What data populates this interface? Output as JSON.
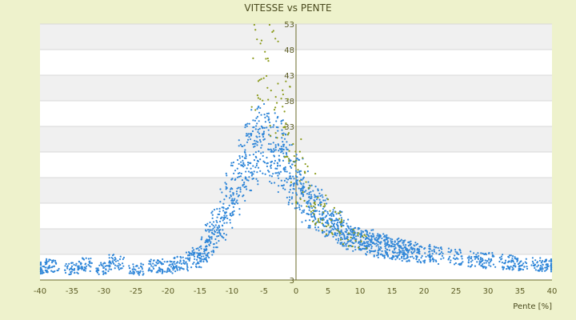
{
  "chart_data": {
    "type": "scatter",
    "title": "VITESSE vs PENTE",
    "xlabel": "Pente [%]",
    "ylabel": "",
    "xlim": [
      -40,
      40
    ],
    "ylim": [
      3,
      53
    ],
    "x_ticks": [
      "-40",
      "-35",
      "-30",
      "-25",
      "-20",
      "-15",
      "-10",
      "-5",
      "0",
      "5",
      "10",
      "15",
      "20",
      "25",
      "30",
      "35",
      "40"
    ],
    "y_ticks": [
      "3",
      "",
      "",
      "",
      "",
      "",
      "",
      "33",
      "38",
      "43",
      "48",
      "53"
    ],
    "grid": true,
    "legend": "none",
    "colors": {
      "background": "#eef2cc",
      "plot_area": "#ffffff",
      "band": "#f0f0f0",
      "series_main": "#2f86d8",
      "series_secondary": "#8a9a1a",
      "axis": "#6b6b2a"
    },
    "series": [
      {
        "description_key": "main",
        "color": "#2f86d8",
        "points": [
          [
            -40,
            5.3
          ],
          [
            -38,
            5.8
          ],
          [
            -35,
            5.2
          ],
          [
            -33,
            6.0
          ],
          [
            -30,
            5.3
          ],
          [
            -28,
            6.5
          ],
          [
            -25,
            5.1
          ],
          [
            -22,
            5.8
          ],
          [
            -20,
            5.5
          ],
          [
            -18,
            6.2
          ],
          [
            -16,
            7.0
          ],
          [
            -15,
            8.0
          ],
          [
            -14,
            9.5
          ],
          [
            -13,
            12
          ],
          [
            -12,
            14
          ],
          [
            -11,
            17
          ],
          [
            -10,
            20
          ],
          [
            -9,
            23
          ],
          [
            -8,
            26
          ],
          [
            -7,
            28
          ],
          [
            -6,
            30
          ],
          [
            -5,
            31
          ],
          [
            -4,
            30
          ],
          [
            -3,
            28
          ],
          [
            -2,
            26
          ],
          [
            -1,
            24
          ],
          [
            0,
            22
          ],
          [
            1,
            20
          ],
          [
            2,
            18
          ],
          [
            3,
            17
          ],
          [
            4,
            16
          ],
          [
            5,
            14.5
          ],
          [
            6,
            13.5
          ],
          [
            7,
            12.5
          ],
          [
            8,
            12
          ],
          [
            9,
            11.5
          ],
          [
            10,
            11
          ],
          [
            11,
            10.5
          ],
          [
            12,
            10
          ],
          [
            13,
            9.8
          ],
          [
            14,
            9.5
          ],
          [
            15,
            9.2
          ],
          [
            16,
            9
          ],
          [
            17,
            8.7
          ],
          [
            18,
            8.5
          ],
          [
            20,
            8.2
          ],
          [
            22,
            7.8
          ],
          [
            25,
            7.5
          ],
          [
            28,
            7
          ],
          [
            30,
            6.8
          ],
          [
            33,
            6.5
          ],
          [
            35,
            6.2
          ],
          [
            38,
            6
          ],
          [
            40,
            5.8
          ]
        ]
      },
      {
        "description_key": "secondary",
        "color": "#8a9a1a",
        "points": [
          [
            -6,
            45
          ],
          [
            -5,
            46
          ],
          [
            -4,
            44
          ],
          [
            -3,
            40
          ],
          [
            -2,
            35
          ],
          [
            -1,
            30
          ],
          [
            0,
            25
          ],
          [
            1,
            22
          ],
          [
            2,
            20
          ],
          [
            3,
            18
          ],
          [
            4,
            16
          ],
          [
            5,
            15
          ],
          [
            6,
            14
          ],
          [
            8,
            12
          ],
          [
            10,
            11
          ]
        ]
      }
    ]
  }
}
